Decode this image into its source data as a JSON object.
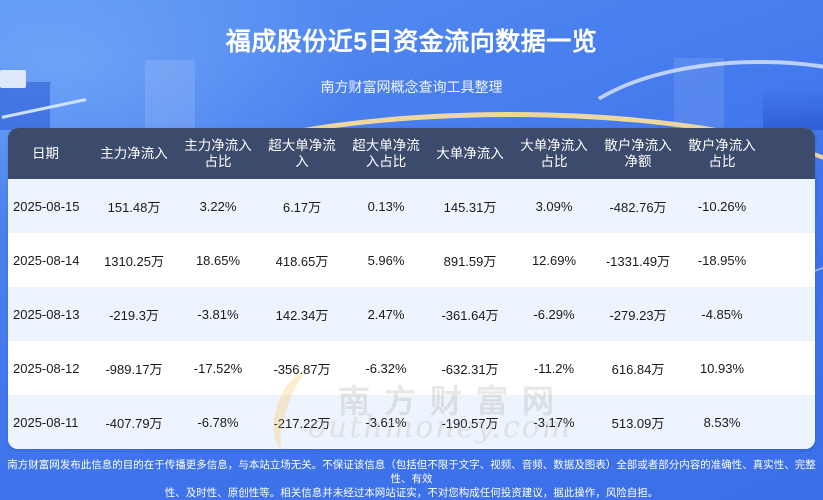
{
  "header": {
    "title": "福成股份近5日资金流向数据一览",
    "subtitle": "南方财富网概念查询工具整理"
  },
  "table": {
    "columns": [
      {
        "line1": "日期",
        "line2": ""
      },
      {
        "line1": "主力净流入",
        "line2": ""
      },
      {
        "line1": "主力净流入",
        "line2": "占比"
      },
      {
        "line1": "超大单净流",
        "line2": "入"
      },
      {
        "line1": "超大单净流",
        "line2": "入占比"
      },
      {
        "line1": "大单净流入",
        "line2": ""
      },
      {
        "line1": "大单净流入",
        "line2": "占比"
      },
      {
        "line1": "散户净流入",
        "line2": "净额"
      },
      {
        "line1": "散户净流入",
        "line2": "占比"
      }
    ],
    "rows": [
      [
        "2025-08-15",
        "151.48万",
        "3.22%",
        "6.17万",
        "0.13%",
        "145.31万",
        "3.09%",
        "-482.76万",
        "-10.26%"
      ],
      [
        "2025-08-14",
        "1310.25万",
        "18.65%",
        "418.65万",
        "5.96%",
        "891.59万",
        "12.69%",
        "-1331.49万",
        "-18.95%"
      ],
      [
        "2025-08-13",
        "-219.3万",
        "-3.81%",
        "142.34万",
        "2.47%",
        "-361.64万",
        "-6.29%",
        "-279.23万",
        "-4.85%"
      ],
      [
        "2025-08-12",
        "-989.17万",
        "-17.52%",
        "-356.87万",
        "-6.32%",
        "-632.31万",
        "-11.2%",
        "616.84万",
        "10.93%"
      ],
      [
        "2025-08-11",
        "-407.79万",
        "-6.78%",
        "-217.22万",
        "-3.61%",
        "-190.57万",
        "-3.17%",
        "513.09万",
        "8.53%"
      ]
    ]
  },
  "watermark": {
    "cn": "南方财富网",
    "en": "outhmoney.com"
  },
  "footer": {
    "line1": "南方财富网发布此信息的目的在于传播更多信息，与本站立场无关。不保证该信息（包括但不限于文字、视频、音频、数据及图表）全部或者部分内容的准确性、真实性、完整性、有效",
    "line2": "性、及时性、原创性等。相关信息并未经过本网站证实，不对您构成任何投资建议，据此操作，风险自担。"
  },
  "colors": {
    "background": "#4a80ee",
    "table_header": "#3c4a6b",
    "row_alt": "#eef4fd",
    "row": "#ffffff"
  }
}
